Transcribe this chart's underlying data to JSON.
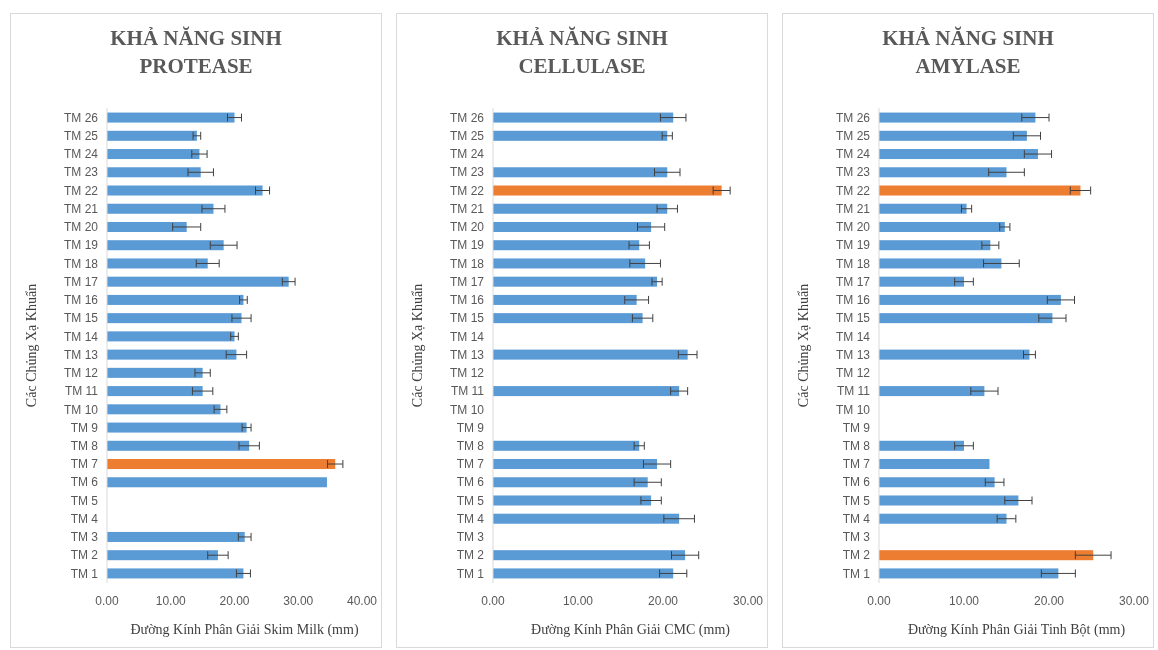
{
  "chart_data": [
    {
      "type": "bar",
      "orientation": "horizontal",
      "title": "KHẢ NĂNG SINH PROTEASE",
      "xlabel": "Đường Kính Phân Giải Skim Milk (mm)",
      "ylabel": "Các Chủng Xạ Khuẩn",
      "categories": [
        "TM 26",
        "TM 25",
        "TM 24",
        "TM 23",
        "TM 22",
        "TM 21",
        "TM 20",
        "TM 19",
        "TM 18",
        "TM 17",
        "TM 16",
        "TM 15",
        "TM 14",
        "TM 13",
        "TM 12",
        "TM 11",
        "TM 10",
        "TM 9",
        "TM 8",
        "TM 7",
        "TM 6",
        "TM 5",
        "TM 4",
        "TM 3",
        "TM 2",
        "TM 1"
      ],
      "values": [
        20.0,
        14.1,
        14.5,
        14.7,
        24.4,
        16.7,
        12.5,
        18.3,
        15.8,
        28.5,
        21.4,
        21.1,
        20.0,
        20.3,
        15.0,
        15.0,
        17.8,
        21.9,
        22.3,
        35.8,
        34.5,
        null,
        null,
        21.6,
        17.4,
        21.4
      ],
      "errors": [
        1.1,
        0.6,
        1.2,
        2.0,
        1.1,
        1.8,
        2.2,
        2.1,
        1.8,
        1.0,
        0.6,
        1.5,
        0.6,
        1.6,
        1.2,
        1.6,
        1.0,
        0.7,
        1.6,
        1.2,
        null,
        null,
        null,
        1.0,
        1.6,
        1.1
      ],
      "colors": [
        "#5b9bd5",
        "#5b9bd5",
        "#5b9bd5",
        "#5b9bd5",
        "#5b9bd5",
        "#5b9bd5",
        "#5b9bd5",
        "#5b9bd5",
        "#5b9bd5",
        "#5b9bd5",
        "#5b9bd5",
        "#5b9bd5",
        "#5b9bd5",
        "#5b9bd5",
        "#5b9bd5",
        "#5b9bd5",
        "#5b9bd5",
        "#5b9bd5",
        "#5b9bd5",
        "#ed7d31",
        "#5b9bd5",
        null,
        null,
        "#5b9bd5",
        "#5b9bd5",
        "#5b9bd5"
      ],
      "xlim": [
        0,
        40
      ],
      "xticks": [
        {
          "value": 0,
          "label": "0.00"
        },
        {
          "value": 10,
          "label": "10.00"
        },
        {
          "value": 20,
          "label": "20.00"
        },
        {
          "value": 30,
          "label": "30.00"
        },
        {
          "value": 40,
          "label": "40.00"
        }
      ]
    },
    {
      "type": "bar",
      "orientation": "horizontal",
      "title": "KHẢ NĂNG SINH CELLULASE",
      "xlabel": "Đường Kính Phân Giải CMC (mm)",
      "ylabel": "Các Chủng Xạ Khuẩn",
      "categories": [
        "TM 26",
        "TM 25",
        "TM 24",
        "TM 23",
        "TM 22",
        "TM 21",
        "TM 20",
        "TM 19",
        "TM 18",
        "TM 17",
        "TM 16",
        "TM 15",
        "TM 14",
        "TM 13",
        "TM 12",
        "TM 11",
        "TM 10",
        "TM 9",
        "TM 8",
        "TM 7",
        "TM 6",
        "TM 5",
        "TM 4",
        "TM 3",
        "TM 2",
        "TM 1"
      ],
      "values": [
        21.2,
        20.5,
        null,
        20.5,
        26.9,
        20.5,
        18.6,
        17.2,
        17.9,
        19.3,
        16.9,
        17.6,
        null,
        22.9,
        null,
        21.9,
        null,
        null,
        17.2,
        19.3,
        18.2,
        18.6,
        21.9,
        null,
        22.6,
        21.2
      ],
      "errors": [
        1.5,
        0.6,
        null,
        1.5,
        1.0,
        1.2,
        1.6,
        1.2,
        1.8,
        0.6,
        1.4,
        1.2,
        null,
        1.1,
        null,
        1.0,
        null,
        null,
        0.6,
        1.6,
        1.6,
        1.2,
        1.8,
        null,
        1.6,
        1.6
      ],
      "colors": [
        "#5b9bd5",
        "#5b9bd5",
        null,
        "#5b9bd5",
        "#ed7d31",
        "#5b9bd5",
        "#5b9bd5",
        "#5b9bd5",
        "#5b9bd5",
        "#5b9bd5",
        "#5b9bd5",
        "#5b9bd5",
        null,
        "#5b9bd5",
        null,
        "#5b9bd5",
        null,
        null,
        "#5b9bd5",
        "#5b9bd5",
        "#5b9bd5",
        "#5b9bd5",
        "#5b9bd5",
        null,
        "#5b9bd5",
        "#5b9bd5"
      ],
      "xlim": [
        0,
        30
      ],
      "xticks": [
        {
          "value": 0,
          "label": "0.00"
        },
        {
          "value": 10,
          "label": "10.00"
        },
        {
          "value": 20,
          "label": "20.00"
        },
        {
          "value": 30,
          "label": "30.00"
        }
      ]
    },
    {
      "type": "bar",
      "orientation": "horizontal",
      "title": "KHẢ NĂNG SINH AMYLASE",
      "xlabel": "Đường Kính Phân Giải Tinh Bột (mm)",
      "ylabel": "Các Chủng Xạ Khuẩn",
      "categories": [
        "TM 26",
        "TM 25",
        "TM 24",
        "TM 23",
        "TM 22",
        "TM 21",
        "TM 20",
        "TM 19",
        "TM 18",
        "TM 17",
        "TM 16",
        "TM 15",
        "TM 14",
        "TM 13",
        "TM 12",
        "TM 11",
        "TM 10",
        "TM 9",
        "TM 8",
        "TM 7",
        "TM 6",
        "TM 5",
        "TM 4",
        "TM 3",
        "TM 2",
        "TM 1"
      ],
      "values": [
        18.4,
        17.4,
        18.7,
        15.0,
        23.7,
        10.3,
        14.8,
        13.1,
        14.4,
        10.0,
        21.4,
        20.4,
        null,
        17.7,
        null,
        12.4,
        null,
        null,
        10.0,
        13.0,
        13.6,
        16.4,
        15.0,
        null,
        25.2,
        21.1
      ],
      "errors": [
        1.6,
        1.6,
        1.6,
        2.1,
        1.2,
        0.6,
        0.6,
        1.0,
        2.1,
        1.1,
        1.6,
        1.6,
        null,
        0.7,
        null,
        1.6,
        null,
        null,
        1.1,
        null,
        1.1,
        1.6,
        1.1,
        null,
        2.1,
        2.0
      ],
      "colors": [
        "#5b9bd5",
        "#5b9bd5",
        "#5b9bd5",
        "#5b9bd5",
        "#ed7d31",
        "#5b9bd5",
        "#5b9bd5",
        "#5b9bd5",
        "#5b9bd5",
        "#5b9bd5",
        "#5b9bd5",
        "#5b9bd5",
        null,
        "#5b9bd5",
        null,
        "#5b9bd5",
        null,
        null,
        "#5b9bd5",
        "#5b9bd5",
        "#5b9bd5",
        "#5b9bd5",
        "#5b9bd5",
        null,
        "#ed7d31",
        "#5b9bd5"
      ],
      "xlim": [
        0,
        30
      ],
      "xticks": [
        {
          "value": 0,
          "label": "0.00"
        },
        {
          "value": 10,
          "label": "10.00"
        },
        {
          "value": 20,
          "label": "20.00"
        },
        {
          "value": 30,
          "label": "30.00"
        }
      ]
    }
  ]
}
